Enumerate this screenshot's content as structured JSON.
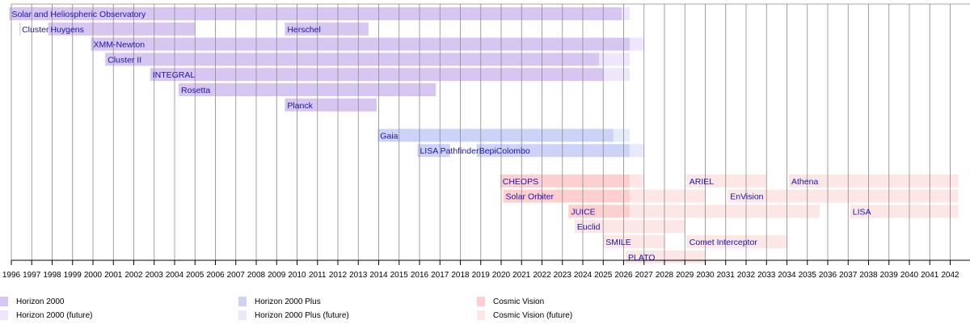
{
  "chart_data": {
    "type": "timeline",
    "x_axis": {
      "start": 1996,
      "end": 2042,
      "ticks": [
        1996,
        1997,
        1998,
        1999,
        2000,
        2001,
        2002,
        2003,
        2004,
        2005,
        2006,
        2007,
        2008,
        2009,
        2010,
        2011,
        2012,
        2013,
        2014,
        2015,
        2016,
        2017,
        2018,
        2019,
        2020,
        2021,
        2022,
        2023,
        2024,
        2025,
        2026,
        2027,
        2028,
        2029,
        2030,
        2031,
        2032,
        2033,
        2034,
        2035,
        2036,
        2037,
        2038,
        2039,
        2040,
        2041,
        2042
      ]
    },
    "colors": {
      "horizon2000": "#d8c6f2",
      "horizon2000_future": "#efe6fb",
      "horizon2000plus": "#cdd3f7",
      "horizon2000plus_future": "#e7eafb",
      "cosmic_vision": "#fdcfcf",
      "cosmic_vision_future": "#fde6e6",
      "grid": "#8a8a8a",
      "label": "#1a13b4"
    },
    "missions": [
      {
        "name": "Solar and Heliospheric Observatory",
        "row": 0,
        "program": "horizon2000",
        "start": 1995.9,
        "end": 2025.9,
        "future_end": 2026.3
      },
      {
        "name": "Cluster",
        "row": 1,
        "program": "horizon2000",
        "start": 1996.4,
        "end": 1996.45,
        "future_end": null
      },
      {
        "name": "Huygens",
        "row": 1,
        "program": "horizon2000",
        "start": 1997.8,
        "end": 2005.0,
        "future_end": null
      },
      {
        "name": "Herschel",
        "row": 1,
        "program": "horizon2000",
        "start": 2009.4,
        "end": 2013.5,
        "future_end": null
      },
      {
        "name": "XMM-Newton",
        "row": 2,
        "program": "horizon2000",
        "start": 1999.9,
        "end": 2026.3,
        "future_end": 2027.0
      },
      {
        "name": "Cluster II",
        "row": 3,
        "program": "horizon2000",
        "start": 2000.6,
        "end": 2024.8,
        "future_end": 2026.3
      },
      {
        "name": "INTEGRAL",
        "row": 4,
        "program": "horizon2000",
        "start": 2002.8,
        "end": 2025.0,
        "future_end": 2026.3
      },
      {
        "name": "Rosetta",
        "row": 5,
        "program": "horizon2000",
        "start": 2004.2,
        "end": 2016.8,
        "future_end": null
      },
      {
        "name": "Planck",
        "row": 6,
        "program": "horizon2000",
        "start": 2009.4,
        "end": 2013.9,
        "future_end": null
      },
      {
        "name": "Gaia",
        "row": 8,
        "program": "horizon2000plus",
        "start": 2013.95,
        "end": 2025.5,
        "future_end": 2026.3
      },
      {
        "name": "LISA Pathfinder",
        "row": 9,
        "program": "horizon2000plus",
        "start": 2015.9,
        "end": 2017.5,
        "future_end": null
      },
      {
        "name": "BepiColombo",
        "row": 9,
        "program": "horizon2000plus",
        "start": 2018.8,
        "end": 2026.3,
        "future_end": 2027.0
      },
      {
        "name": "CHEOPS",
        "row": 11,
        "program": "cosmic_vision",
        "start": 2019.95,
        "end": 2026.3,
        "future_end": 2027.0
      },
      {
        "name": "ARIEL",
        "row": 11,
        "program": "cosmic_vision_future",
        "start": 2029.1,
        "end": 2033.0,
        "future_end": null
      },
      {
        "name": "Athena",
        "row": 11,
        "program": "cosmic_vision_future",
        "start": 2034.1,
        "end": 2042.4,
        "future_end": null
      },
      {
        "name": "Solar Orbiter",
        "row": 12,
        "program": "cosmic_vision",
        "start": 2020.1,
        "end": 2026.3,
        "future_end": 2030.0
      },
      {
        "name": "EnVision",
        "row": 12,
        "program": "cosmic_vision_future",
        "start": 2031.1,
        "end": 2042.4,
        "future_end": null
      },
      {
        "name": "JUICE",
        "row": 13,
        "program": "cosmic_vision",
        "start": 2023.3,
        "end": 2026.3,
        "future_end": 2035.6
      },
      {
        "name": "LISA",
        "row": 13,
        "program": "cosmic_vision_future",
        "start": 2037.1,
        "end": 2042.4,
        "future_end": null
      },
      {
        "name": "Euclid",
        "row": 14,
        "program": "cosmic_vision",
        "start": 2023.6,
        "end": 2023.6,
        "future_end": 2029.0
      },
      {
        "name": "SMILE",
        "row": 15,
        "program": "cosmic_vision_future",
        "start": 2025.0,
        "end": 2028.0,
        "future_end": null
      },
      {
        "name": "Comet Interceptor",
        "row": 15,
        "program": "cosmic_vision_future",
        "start": 2029.1,
        "end": 2034.0,
        "future_end": null
      },
      {
        "name": "PLATO",
        "row": 16,
        "program": "cosmic_vision_future",
        "start": 2026.1,
        "end": 2030.0,
        "future_end": null
      }
    ],
    "legend": [
      {
        "key": "horizon2000",
        "label": "Horizon 2000"
      },
      {
        "key": "horizon2000_future",
        "label": "Horizon 2000 (future)"
      },
      {
        "key": "horizon2000plus",
        "label": "Horizon 2000 Plus"
      },
      {
        "key": "horizon2000plus_future",
        "label": "Horizon 2000 Plus (future)"
      },
      {
        "key": "cosmic_vision",
        "label": "Cosmic Vision"
      },
      {
        "key": "cosmic_vision_future",
        "label": "Cosmic Vision (future)"
      }
    ]
  }
}
